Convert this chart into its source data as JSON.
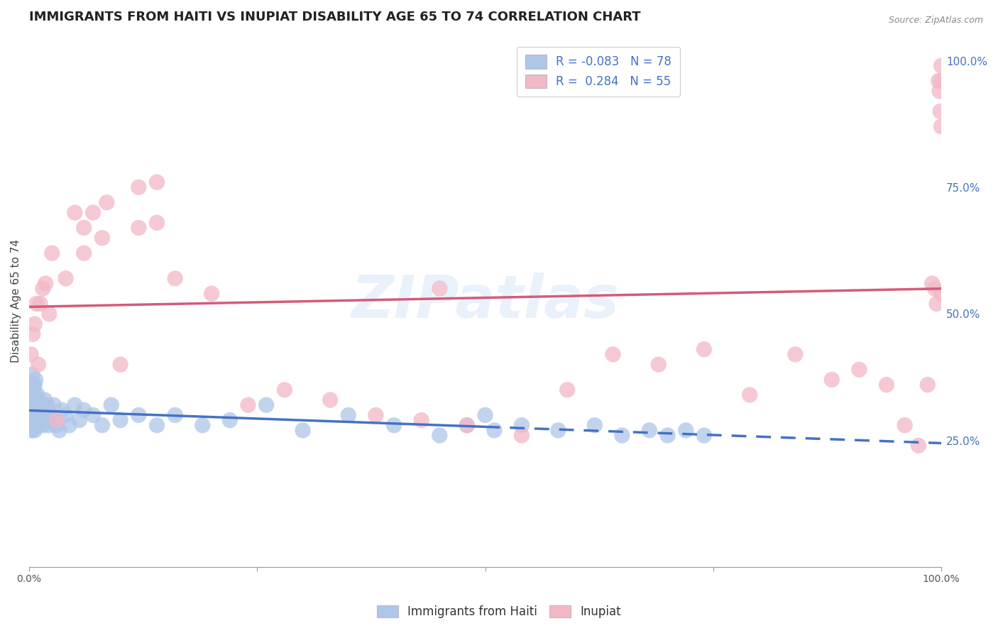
{
  "title": "IMMIGRANTS FROM HAITI VS INUPIAT DISABILITY AGE 65 TO 74 CORRELATION CHART",
  "source": "Source: ZipAtlas.com",
  "ylabel": "Disability Age 65 to 74",
  "ylabel_right_ticks": [
    "25.0%",
    "50.0%",
    "75.0%",
    "100.0%"
  ],
  "ylabel_right_vals": [
    0.25,
    0.5,
    0.75,
    1.0
  ],
  "watermark": "ZIPatlas",
  "legend_haiti_r": "-0.083",
  "legend_haiti_n": "78",
  "legend_inupiat_r": "0.284",
  "legend_inupiat_n": "55",
  "haiti_fill": "#aec6e8",
  "haiti_edge": "#4472c4",
  "inupiat_fill": "#f2b8c6",
  "inupiat_edge": "#d45b7a",
  "inupiat_line": "#d45b7a",
  "haiti_line": "#4472c4",
  "background": "#ffffff",
  "grid_color": "#cccccc",
  "xlim": [
    0.0,
    1.0
  ],
  "ylim": [
    0.0,
    1.05
  ],
  "title_fontsize": 13,
  "axis_fontsize": 11,
  "tick_fontsize": 10,
  "legend_fontsize": 12,
  "haiti_x": [
    0.001,
    0.001,
    0.002,
    0.002,
    0.002,
    0.003,
    0.003,
    0.003,
    0.003,
    0.004,
    0.004,
    0.004,
    0.004,
    0.005,
    0.005,
    0.005,
    0.005,
    0.006,
    0.006,
    0.006,
    0.006,
    0.007,
    0.007,
    0.007,
    0.008,
    0.008,
    0.009,
    0.009,
    0.01,
    0.01,
    0.011,
    0.012,
    0.013,
    0.014,
    0.015,
    0.016,
    0.017,
    0.018,
    0.019,
    0.02,
    0.021,
    0.022,
    0.023,
    0.025,
    0.027,
    0.03,
    0.033,
    0.036,
    0.04,
    0.044,
    0.05,
    0.055,
    0.06,
    0.07,
    0.08,
    0.09,
    0.1,
    0.12,
    0.14,
    0.16,
    0.19,
    0.22,
    0.26,
    0.3,
    0.35,
    0.4,
    0.45,
    0.48,
    0.5,
    0.51,
    0.54,
    0.58,
    0.62,
    0.65,
    0.68,
    0.7,
    0.72,
    0.74
  ],
  "haiti_y": [
    0.3,
    0.33,
    0.28,
    0.31,
    0.35,
    0.27,
    0.3,
    0.32,
    0.38,
    0.29,
    0.31,
    0.34,
    0.36,
    0.28,
    0.3,
    0.33,
    0.35,
    0.27,
    0.29,
    0.32,
    0.36,
    0.3,
    0.33,
    0.37,
    0.29,
    0.32,
    0.28,
    0.34,
    0.3,
    0.33,
    0.28,
    0.31,
    0.29,
    0.32,
    0.3,
    0.28,
    0.33,
    0.3,
    0.29,
    0.32,
    0.31,
    0.28,
    0.3,
    0.29,
    0.32,
    0.28,
    0.27,
    0.31,
    0.3,
    0.28,
    0.32,
    0.29,
    0.31,
    0.3,
    0.28,
    0.32,
    0.29,
    0.3,
    0.28,
    0.3,
    0.28,
    0.29,
    0.32,
    0.27,
    0.3,
    0.28,
    0.26,
    0.28,
    0.3,
    0.27,
    0.28,
    0.27,
    0.28,
    0.26,
    0.27,
    0.26,
    0.27,
    0.26
  ],
  "inupiat_x": [
    0.002,
    0.004,
    0.006,
    0.008,
    0.01,
    0.012,
    0.015,
    0.018,
    0.022,
    0.025,
    0.03,
    0.04,
    0.05,
    0.06,
    0.07,
    0.085,
    0.1,
    0.12,
    0.14,
    0.16,
    0.2,
    0.24,
    0.28,
    0.33,
    0.38,
    0.43,
    0.48,
    0.54,
    0.59,
    0.64,
    0.69,
    0.74,
    0.79,
    0.84,
    0.88,
    0.91,
    0.94,
    0.96,
    0.975,
    0.985,
    0.99,
    0.993,
    0.995,
    0.997,
    0.998,
    0.999,
    1.0,
    1.0,
    1.0,
    1.0,
    0.06,
    0.08,
    0.12,
    0.14,
    0.45
  ],
  "inupiat_y": [
    0.42,
    0.46,
    0.48,
    0.52,
    0.4,
    0.52,
    0.55,
    0.56,
    0.5,
    0.62,
    0.29,
    0.57,
    0.7,
    0.67,
    0.7,
    0.72,
    0.4,
    0.75,
    0.76,
    0.57,
    0.54,
    0.32,
    0.35,
    0.33,
    0.3,
    0.29,
    0.28,
    0.26,
    0.35,
    0.42,
    0.4,
    0.43,
    0.34,
    0.42,
    0.37,
    0.39,
    0.36,
    0.28,
    0.24,
    0.36,
    0.56,
    0.55,
    0.52,
    0.96,
    0.94,
    0.9,
    0.87,
    0.96,
    0.99,
    0.54,
    0.62,
    0.65,
    0.67,
    0.68,
    0.55
  ]
}
